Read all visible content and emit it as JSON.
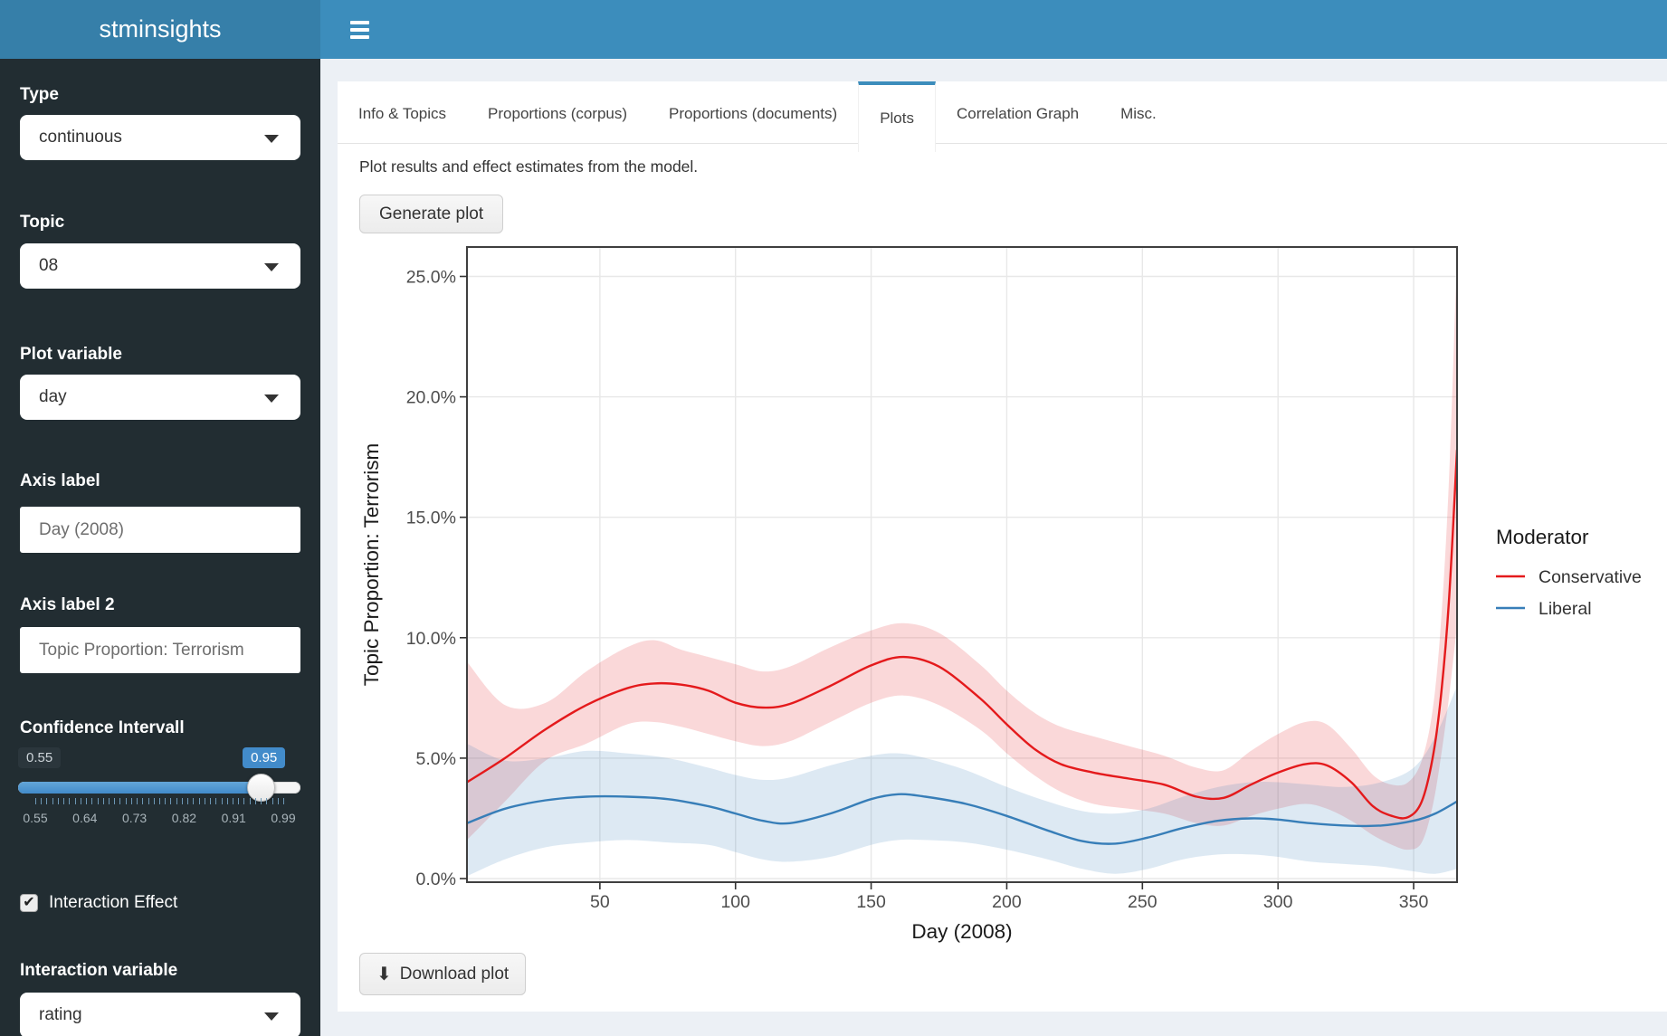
{
  "header": {
    "title": "stminsights"
  },
  "sidebar": {
    "fields": [
      {
        "label": "Type",
        "value": "continuous"
      },
      {
        "label": "Topic",
        "value": "08"
      },
      {
        "label": "Plot variable",
        "value": "day"
      },
      {
        "label": "Axis label",
        "value": "Day (2008)"
      },
      {
        "label": "Axis label 2",
        "value": "Topic Proportion: Terrorism"
      }
    ],
    "slider": {
      "label": "Confidence Intervall",
      "min": 0.55,
      "max": 0.99,
      "value": 0.95,
      "min_label": "0.55",
      "value_label": "0.95",
      "grid_labels": [
        "0.55",
        "0.64",
        "0.73",
        "0.82",
        "0.91",
        "0.99"
      ],
      "minor_tick_count": 45
    },
    "checkbox": {
      "label": "Interaction Effect",
      "checked": true
    },
    "interaction": {
      "label": "Interaction variable",
      "value": "rating"
    }
  },
  "tabs": [
    {
      "label": "Info & Topics",
      "active": false
    },
    {
      "label": "Proportions (corpus)",
      "active": false
    },
    {
      "label": "Proportions (documents)",
      "active": false
    },
    {
      "label": "Plots",
      "active": true
    },
    {
      "label": "Correlation Graph",
      "active": false
    },
    {
      "label": "Misc.",
      "active": false
    }
  ],
  "main": {
    "description": "Plot results and effect estimates from the model.",
    "generate_button": "Generate plot",
    "download_button": "Download plot",
    "download_icon": "⬇"
  },
  "accent_color": "#3c8dbc",
  "chart_data": {
    "type": "line",
    "title": "",
    "xlabel": "Day (2008)",
    "ylabel": "Topic Proportion: Terrorism",
    "xlim": [
      1,
      366
    ],
    "ylim": [
      0,
      26.2
    ],
    "grid": true,
    "x_ticks": [
      50,
      100,
      150,
      200,
      250,
      300,
      350
    ],
    "y_ticks": [
      0,
      5,
      10,
      15,
      20,
      25
    ],
    "y_tick_labels": [
      "0.0%",
      "5.0%",
      "10.0%",
      "15.0%",
      "20.0%",
      "25.0%"
    ],
    "legend": {
      "title": "Moderator",
      "position": "right",
      "entries": [
        {
          "label": "Conservative",
          "color": "#e41a1c"
        },
        {
          "label": "Liberal",
          "color": "#377eb8"
        }
      ]
    },
    "series": [
      {
        "name": "Conservative",
        "color": "#e41a1c",
        "ribbon_color": "rgba(228,26,28,0.17)",
        "x": [
          1,
          15,
          30,
          45,
          60,
          70,
          80,
          90,
          100,
          110,
          120,
          135,
          150,
          162,
          175,
          190,
          200,
          210,
          220,
          232,
          245,
          258,
          270,
          280,
          290,
          300,
          310,
          318,
          327,
          335,
          342,
          348,
          353,
          357,
          360,
          363,
          366
        ],
        "y": [
          4.0,
          5.0,
          6.2,
          7.2,
          7.9,
          8.1,
          8.05,
          7.8,
          7.3,
          7.1,
          7.25,
          8.0,
          8.85,
          9.2,
          8.8,
          7.5,
          6.4,
          5.4,
          4.75,
          4.4,
          4.15,
          3.9,
          3.4,
          3.35,
          3.9,
          4.4,
          4.75,
          4.7,
          4.0,
          3.0,
          2.6,
          2.55,
          3.2,
          5.0,
          7.5,
          11.5,
          17.8
        ],
        "ci_high": [
          9.0,
          7.2,
          7.3,
          8.6,
          9.6,
          9.9,
          9.5,
          9.2,
          8.9,
          8.6,
          8.8,
          9.6,
          10.3,
          10.6,
          10.2,
          8.9,
          7.8,
          6.9,
          6.3,
          5.9,
          5.5,
          5.1,
          4.6,
          4.5,
          5.3,
          6.0,
          6.5,
          6.4,
          5.4,
          4.3,
          3.9,
          4.0,
          4.9,
          7.0,
          10.5,
          16.5,
          26.0
        ],
        "ci_low": [
          1.6,
          3.2,
          4.9,
          5.6,
          6.4,
          6.5,
          6.3,
          6.0,
          5.7,
          5.5,
          5.7,
          6.5,
          7.3,
          7.6,
          7.2,
          6.2,
          5.2,
          4.3,
          3.6,
          3.1,
          2.9,
          2.7,
          2.3,
          2.2,
          2.6,
          2.9,
          3.1,
          2.9,
          2.4,
          1.8,
          1.4,
          1.2,
          1.5,
          3.0,
          5.0,
          7.5,
          10.5
        ]
      },
      {
        "name": "Liberal",
        "color": "#377eb8",
        "ribbon_color": "rgba(55,126,184,0.17)",
        "x": [
          1,
          15,
          30,
          45,
          60,
          75,
          90,
          100,
          110,
          120,
          135,
          150,
          160,
          170,
          185,
          200,
          215,
          228,
          240,
          252,
          265,
          278,
          290,
          300,
          312,
          325,
          338,
          350,
          358,
          366
        ],
        "y": [
          2.3,
          2.9,
          3.25,
          3.4,
          3.4,
          3.3,
          3.0,
          2.7,
          2.4,
          2.3,
          2.7,
          3.3,
          3.5,
          3.4,
          3.1,
          2.6,
          2.0,
          1.55,
          1.45,
          1.7,
          2.1,
          2.4,
          2.5,
          2.45,
          2.3,
          2.2,
          2.2,
          2.4,
          2.7,
          3.2
        ],
        "ci_high": [
          5.6,
          4.9,
          5.0,
          5.3,
          5.2,
          5.0,
          4.6,
          4.3,
          4.1,
          4.2,
          4.7,
          5.1,
          5.2,
          5.0,
          4.5,
          3.8,
          3.2,
          2.8,
          2.7,
          2.9,
          3.4,
          3.8,
          4.0,
          4.0,
          3.9,
          3.8,
          4.0,
          4.6,
          5.9,
          8.0
        ],
        "ci_low": [
          0.1,
          0.8,
          1.3,
          1.5,
          1.6,
          1.5,
          1.4,
          1.1,
          0.8,
          0.7,
          0.9,
          1.4,
          1.6,
          1.6,
          1.5,
          1.2,
          0.8,
          0.4,
          0.2,
          0.4,
          0.8,
          1.0,
          1.0,
          0.9,
          0.7,
          0.6,
          0.5,
          0.3,
          0.2,
          0.4
        ]
      }
    ]
  }
}
